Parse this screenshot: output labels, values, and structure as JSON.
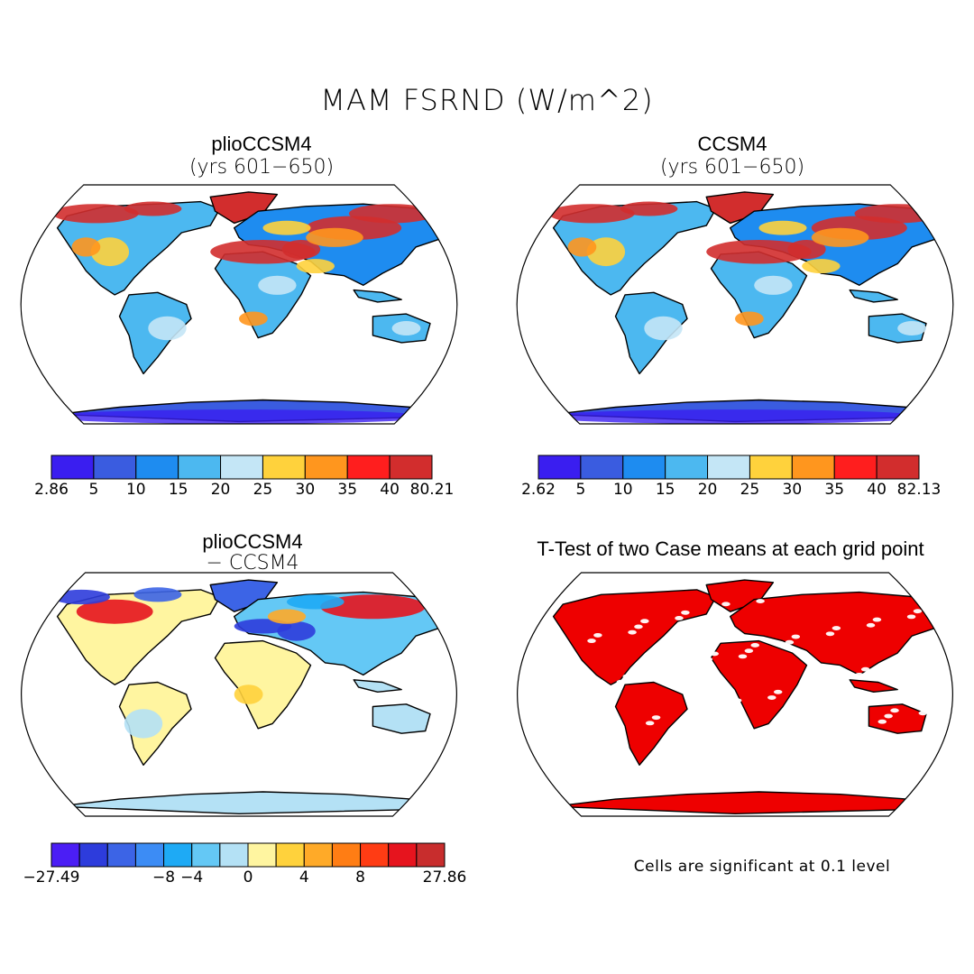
{
  "title": "MAM FSRND (W/m^2)",
  "panels": [
    {
      "id": "plio",
      "title": "plioCCSM4",
      "subtitle": "(yrs 601−650)",
      "colorbar": {
        "colors": [
          "#3a1ef0",
          "#3a5ce0",
          "#1e8cf0",
          "#4cb8f0",
          "#c4e6f6",
          "#ffd23c",
          "#ff961e",
          "#ff1e1e",
          "#d22d2d"
        ],
        "labels": [
          "2.86",
          "5",
          "10",
          "15",
          "20",
          "25",
          "30",
          "35",
          "40",
          "80.21"
        ]
      }
    },
    {
      "id": "ccsm4",
      "title": "CCSM4",
      "subtitle": "(yrs 601−650)",
      "colorbar": {
        "colors": [
          "#3a1ef0",
          "#3a5ce0",
          "#1e8cf0",
          "#4cb8f0",
          "#c4e6f6",
          "#ffd23c",
          "#ff961e",
          "#ff1e1e",
          "#d22d2d"
        ],
        "labels": [
          "2.62",
          "5",
          "10",
          "15",
          "20",
          "25",
          "30",
          "35",
          "40",
          "82.13"
        ]
      }
    },
    {
      "id": "diff",
      "title": "plioCCSM4",
      "subtitle": "− CCSM4",
      "colorbar": {
        "colors": [
          "#4b1ef5",
          "#2d3cdc",
          "#3c64e6",
          "#3c8cf5",
          "#1eaaf5",
          "#64c8f5",
          "#b4e1f5",
          "#fff5a0",
          "#ffd23c",
          "#ffaa28",
          "#ff7d14",
          "#ff3c14",
          "#e6141e",
          "#c82d2d"
        ],
        "labels": [
          "−27.49",
          "−8",
          "−4",
          "0",
          "4",
          "8",
          "27.86"
        ]
      }
    },
    {
      "id": "ttest",
      "title": "T-Test of two Case means at each grid point",
      "note": "Cells are significant at 0.1 level"
    }
  ]
}
